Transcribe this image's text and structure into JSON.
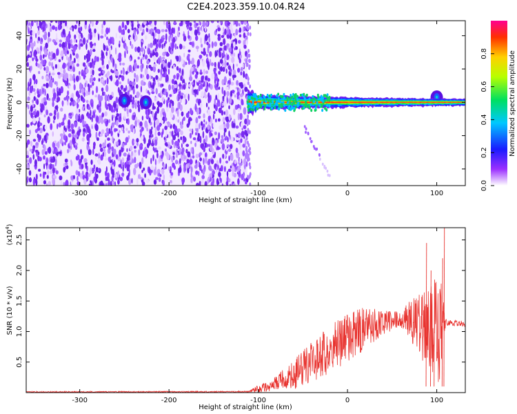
{
  "title": "C2E4.2023.359.10.04.R24",
  "chart_data": [
    {
      "type": "heatmap",
      "xlabel": "Height of straight line (km)",
      "ylabel": "Frequency (Hz)",
      "xlim": [
        -360,
        132
      ],
      "ylim": [
        -50,
        49
      ],
      "xticks": [
        -300,
        -200,
        -100,
        0,
        100
      ],
      "yticks": [
        -40,
        -20,
        0,
        20,
        40
      ],
      "colorbar": {
        "label": "Normalized spectral amplitude",
        "range": [
          0,
          1
        ],
        "ticks": [
          0.0,
          0.2,
          0.4,
          0.6,
          0.8
        ],
        "colormap": "rainbow"
      },
      "noise_region_x": [
        -360,
        -112
      ],
      "signal_band": {
        "x_start": -112,
        "x_end": 132,
        "center_freq_hz": 0,
        "half_width_hz_start": 5,
        "half_width_hz_end": 2
      },
      "branch": {
        "x": [
          -48,
          -20
        ],
        "y": [
          -15,
          -45
        ]
      },
      "hotspots": [
        {
          "x": -250,
          "y": 1
        },
        {
          "x": -226,
          "y": 0
        },
        {
          "x": 100,
          "y": 3
        }
      ]
    },
    {
      "type": "line",
      "xlabel": "Height of straight line (km)",
      "ylabel": "SNR (10 * v/v)",
      "multiplier_label": "(x10",
      "multiplier_exp": "4",
      "xlim": [
        -360,
        132
      ],
      "ylim": [
        0,
        2.7
      ],
      "xticks": [
        -300,
        -200,
        -100,
        0,
        100
      ],
      "yticks": [
        0.5,
        1.0,
        1.5,
        2.0,
        2.5
      ],
      "series": [
        {
          "color": "#e8332f",
          "envelope": {
            "x": [
              -360,
              -112,
              -100,
              -80,
              -60,
              -40,
              -20,
              0,
              20,
              40,
              60,
              80,
              95,
              100,
              105,
              110,
              132
            ],
            "mean": [
              0.01,
              0.015,
              0.06,
              0.15,
              0.3,
              0.5,
              0.7,
              0.9,
              1.05,
              1.15,
              1.2,
              1.15,
              1.0,
              0.95,
              1.05,
              1.15,
              1.12
            ],
            "jitter": [
              0.01,
              0.01,
              0.06,
              0.12,
              0.25,
              0.35,
              0.4,
              0.4,
              0.35,
              0.2,
              0.15,
              0.5,
              0.8,
              0.9,
              0.8,
              0.05,
              0.05
            ]
          },
          "peaks": [
            {
              "x": 88,
              "y": 2.45
            },
            {
              "x": 97,
              "y": 1.85
            },
            {
              "x": 108,
              "y": 2.7
            },
            {
              "x": 106,
              "y": 2.2
            },
            {
              "x": 93,
              "y": 2.0
            }
          ]
        }
      ]
    }
  ]
}
